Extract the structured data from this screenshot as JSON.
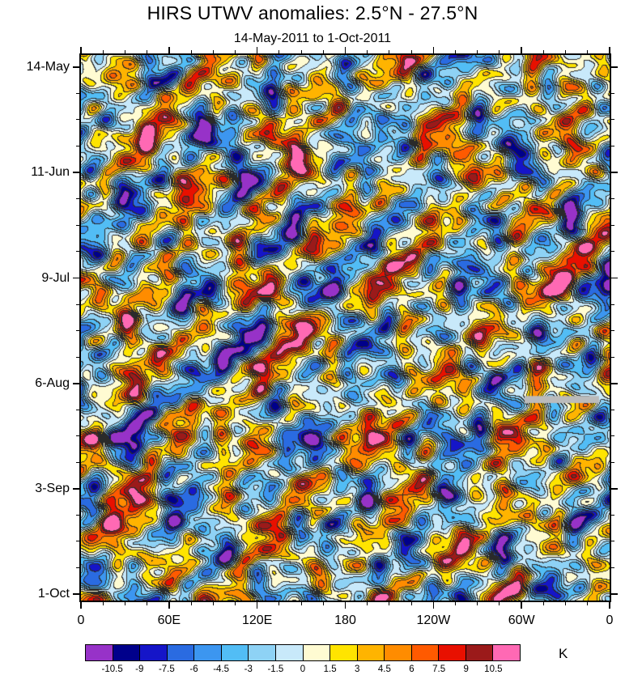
{
  "title": "HIRS UTWV anomalies: 2.5°N - 27.5°N",
  "subtitle": "14-May-2011 to 1-Oct-2011",
  "chart_data": {
    "type": "heatmap",
    "title": "HIRS UTWV anomalies: 2.5°N - 27.5°N",
    "subtitle": "14-May-2011 to 1-Oct-2011",
    "xlabel": "",
    "ylabel": "",
    "x_ticks": {
      "labels": [
        "0",
        "60E",
        "120E",
        "180",
        "120W",
        "60W",
        "0"
      ],
      "fractions": [
        0,
        0.1667,
        0.3333,
        0.5,
        0.6667,
        0.8333,
        1
      ]
    },
    "y_ticks": {
      "labels": [
        "14-May",
        "11-Jun",
        "9-Jul",
        "6-Aug",
        "3-Sep",
        "1-Oct"
      ],
      "fractions": [
        0.022,
        0.215,
        0.409,
        0.602,
        0.795,
        0.988
      ]
    },
    "x_minor_per_major": 3,
    "y_minor_per_major": 3,
    "colorbar": {
      "levels": [
        -10.5,
        -9,
        -7.5,
        -6,
        -4.5,
        -3,
        -1.5,
        0,
        1.5,
        3,
        4.5,
        6,
        7.5,
        9,
        10.5
      ],
      "labels": [
        "-10.5",
        "-9",
        "-7.5",
        "-6",
        "-4.5",
        "-3",
        "-1.5",
        "0",
        "1.5",
        "3",
        "4.5",
        "6",
        "7.5",
        "9",
        "10.5"
      ],
      "colors": [
        "#9732c8",
        "#00008b",
        "#1515c8",
        "#2a6be1",
        "#3c96f0",
        "#52bdf5",
        "#8ed2f5",
        "#c8e9fa",
        "#fffbd2",
        "#ffe400",
        "#ffb400",
        "#ff8c00",
        "#ff5a00",
        "#e81000",
        "#9b1a1a",
        "#ff69b4"
      ],
      "unit": "K"
    },
    "field": {
      "description": "filled-contour anomaly field (K), contour interval 1.5",
      "seed": 20110514,
      "std": 4.6,
      "octaves": [
        [
          8,
          90,
          170,
          1.5
        ],
        [
          10,
          45,
          90,
          1.5
        ],
        [
          12,
          22,
          45,
          1.05
        ]
      ],
      "contour_line_color": "#2a2a2a"
    },
    "missing_data_patch": {
      "x0": 0.839,
      "x1": 0.98,
      "y0": 0.625,
      "y1": 0.638,
      "color": "#bbbbbb"
    }
  },
  "unit_label": "K"
}
